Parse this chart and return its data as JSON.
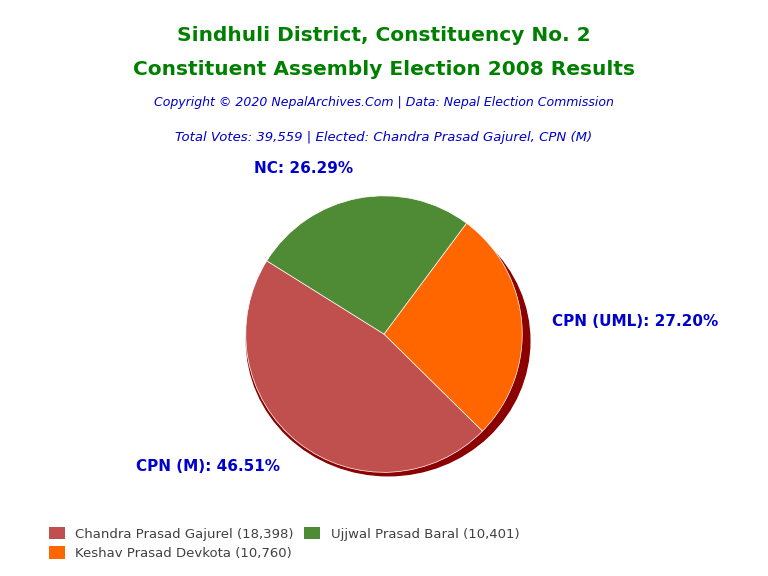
{
  "title_line1": "Sindhuli District, Constituency No. 2",
  "title_line2": "Constituent Assembly Election 2008 Results",
  "title_color": "#008000",
  "copyright_text": "Copyright © 2020 NepalArchives.Com | Data: Nepal Election Commission",
  "copyright_color": "#0000CD",
  "total_votes_text": "Total Votes: 39,559 | Elected: Chandra Prasad Gajurel, CPN (M)",
  "total_votes_color": "#0000CD",
  "slices": [
    {
      "label": "CPN (M): 46.51%",
      "value": 18398,
      "color": "#C0504D",
      "legend": "Chandra Prasad Gajurel (18,398)"
    },
    {
      "label": "CPN (UML): 27.20%",
      "value": 10760,
      "color": "#FF6600",
      "legend": "Keshav Prasad Devkota (10,760)"
    },
    {
      "label": "NC: 26.29%",
      "value": 10401,
      "color": "#4F8B34",
      "legend": "Ujjwal Prasad Baral (10,401)"
    }
  ],
  "label_color": "#0000CD",
  "label_fontsize": 11,
  "pie_startangle": 148,
  "background_color": "#FFFFFF",
  "legend_order": [
    0,
    1,
    2
  ],
  "shadow_color": "#8B0000"
}
